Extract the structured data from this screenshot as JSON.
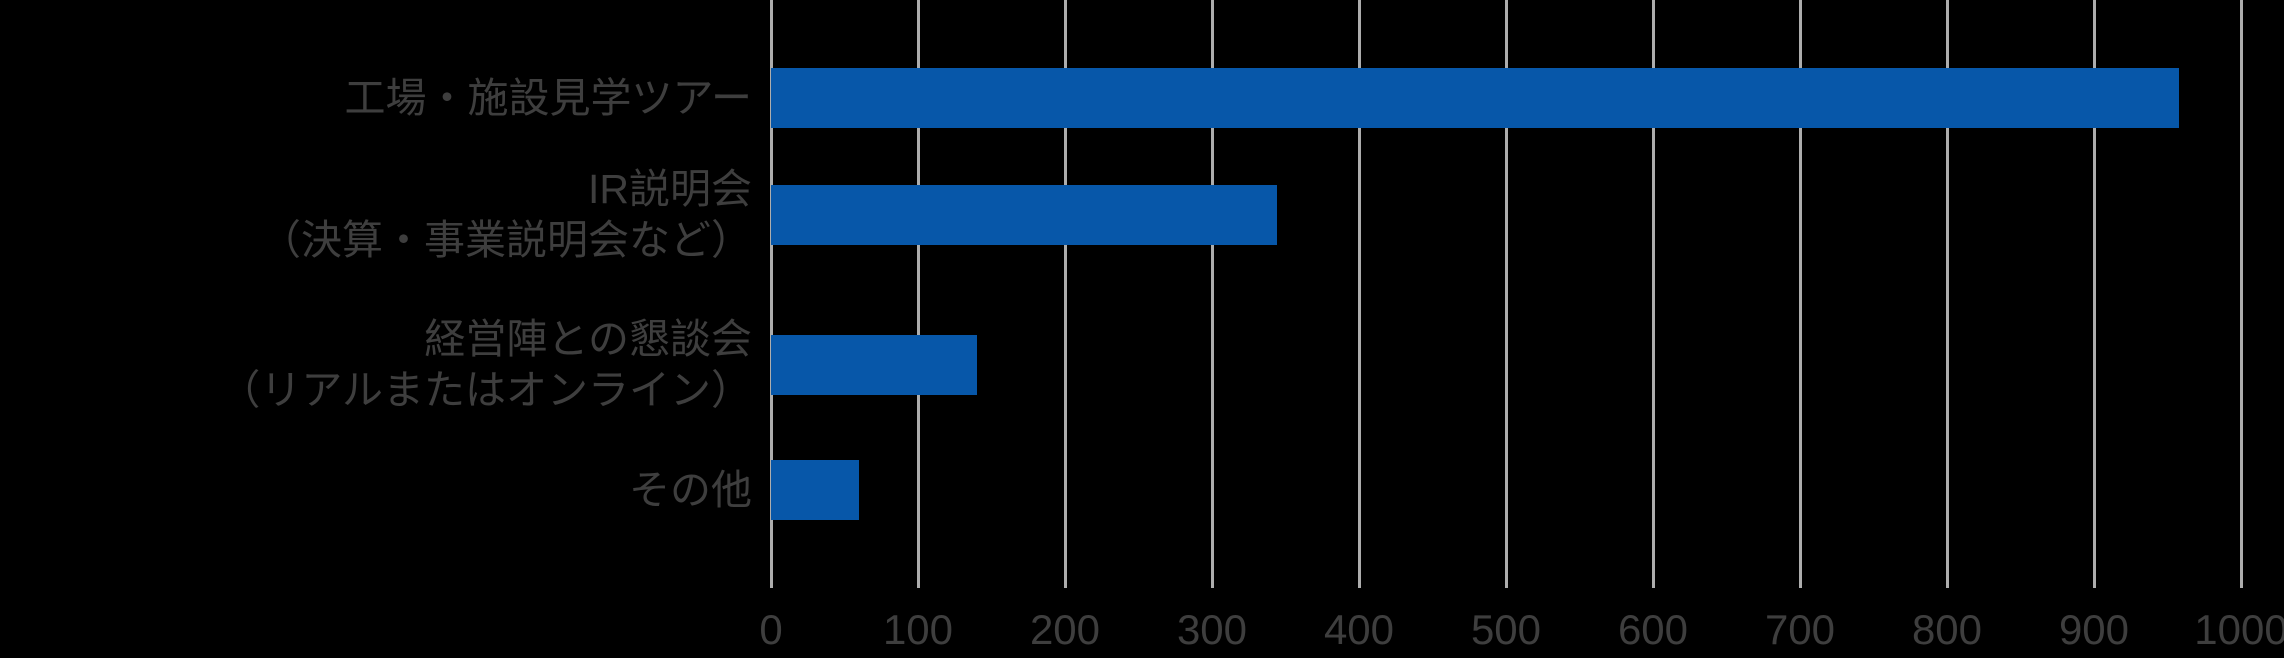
{
  "chart_data": {
    "type": "bar",
    "orientation": "horizontal",
    "title": "",
    "xlabel": "",
    "ylabel": "",
    "categories": [
      [
        "工場・施設見学ツアー"
      ],
      [
        "IR説明会",
        "（決算・事業説明会など）"
      ],
      [
        "経営陣との懇談会",
        "（リアルまたはオンライン）"
      ],
      [
        "その他"
      ]
    ],
    "values": [
      958,
      344,
      140,
      60
    ],
    "xlim": [
      0,
      1000
    ],
    "xticks": [
      0,
      100,
      200,
      300,
      400,
      500,
      600,
      700,
      800,
      900,
      1000
    ],
    "grid": true,
    "legend": "none",
    "colors": {
      "background": "#000000",
      "bar": "#0757a9",
      "gridline": "#adadad",
      "category_label": "#3e3e3e",
      "tick_label": "#3e3e3e"
    }
  }
}
